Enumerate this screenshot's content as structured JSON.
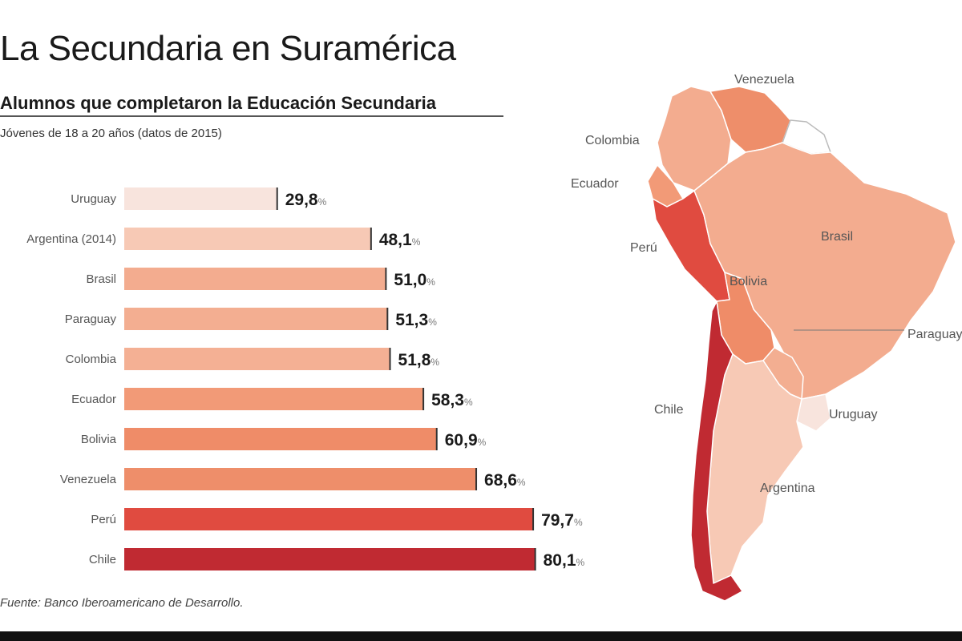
{
  "header": {
    "title": "La Secundaria en Suramérica",
    "subtitle": "Alumnos que completaron la Educación Secundaria",
    "note": "Jóvenes de 18 a 20 años (datos de 2015)",
    "source": "Fuente: Banco Iberoamericano de Desarrollo."
  },
  "chart_data": {
    "type": "bar",
    "orientation": "horizontal",
    "title": "Alumnos que completaron la Educación Secundaria",
    "subtitle": "Jóvenes de 18 a 20 años (datos de 2015)",
    "categories": [
      "Uruguay",
      "Argentina (2014)",
      "Brasil",
      "Paraguay",
      "Colombia",
      "Ecuador",
      "Bolivia",
      "Venezuela",
      "Perú",
      "Chile"
    ],
    "values": [
      29.8,
      48.1,
      51.0,
      51.3,
      51.8,
      58.3,
      60.9,
      68.6,
      79.7,
      80.1
    ],
    "value_labels": [
      "29,8",
      "48,1",
      "51,0",
      "51,3",
      "51,8",
      "58,3",
      "60,9",
      "68,6",
      "79,7",
      "80,1"
    ],
    "unit": "%",
    "xlim": [
      0,
      100
    ],
    "grid": false,
    "legend": "none",
    "colors": [
      "#f8e4dd",
      "#f7c9b5",
      "#f3ac8f",
      "#f3ae91",
      "#f4b094",
      "#f29a77",
      "#ef8c68",
      "#ee8e6a",
      "#e04b40",
      "#c02a32"
    ]
  },
  "map": {
    "labels": [
      "Venezuela",
      "Colombia",
      "Ecuador",
      "Perú",
      "Brasil",
      "Bolivia",
      "Paraguay",
      "Chile",
      "Uruguay",
      "Argentina"
    ]
  }
}
